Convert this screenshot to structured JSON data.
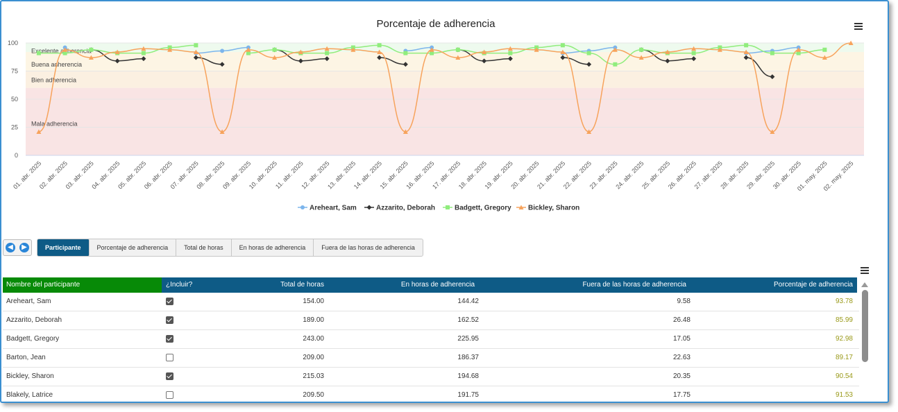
{
  "chart": {
    "title": "Porcentaje de adherencia"
  },
  "chart_data": {
    "type": "line",
    "title": "Porcentaje de adherencia",
    "ylim": [
      0,
      100
    ],
    "yticks": [
      "0",
      "25",
      "50",
      "75",
      "100"
    ],
    "categories": [
      "01. abr. 2025",
      "02. abr. 2025",
      "03. abr. 2025",
      "04. abr. 2025",
      "05. abr. 2025",
      "06. abr. 2025",
      "07. abr. 2025",
      "08. abr. 2025",
      "09. abr. 2025",
      "10. abr. 2025",
      "11. abr. 2025",
      "12. abr. 2025",
      "13. abr. 2025",
      "14. abr. 2025",
      "15. abr. 2025",
      "16. abr. 2025",
      "17. abr. 2025",
      "18. abr. 2025",
      "19. abr. 2025",
      "20. abr. 2025",
      "21. abr. 2025",
      "22. abr. 2025",
      "23. abr. 2025",
      "24. abr. 2025",
      "25. abr. 2025",
      "26. abr. 2025",
      "27. abr. 2025",
      "28. abr. 2025",
      "29. abr. 2025",
      "30. abr. 2025",
      "01. may. 2025",
      "02. may. 2025"
    ],
    "bands": [
      {
        "label": "Excelente adherencia",
        "from": 92,
        "to": 100,
        "color": "#eefaee"
      },
      {
        "label": "Buena adherencia",
        "from": 75,
        "to": 92,
        "color": "#fdf5e4"
      },
      {
        "label": "Bien adherencia",
        "from": 60,
        "to": 75,
        "color": "#fbf0e1"
      },
      {
        "label": "Mala adherencia",
        "from": 0,
        "to": 60,
        "color": "#f9e4e4"
      }
    ],
    "band_label_values": [
      93,
      81,
      67,
      28
    ],
    "series": [
      {
        "name": "Areheart, Sam",
        "color": "#7cb5ec",
        "marker": "circle",
        "values": [
          null,
          96,
          null,
          null,
          null,
          null,
          91,
          93,
          96,
          null,
          null,
          null,
          null,
          null,
          93,
          96,
          null,
          null,
          null,
          null,
          91,
          93,
          96,
          null,
          null,
          null,
          null,
          91,
          93,
          96,
          null,
          null
        ]
      },
      {
        "name": "Azzarito, Deborah",
        "color": "#333333",
        "marker": "diamond",
        "values": [
          null,
          null,
          94,
          84,
          86,
          null,
          87,
          81,
          null,
          94,
          84,
          86,
          null,
          87,
          81,
          null,
          94,
          84,
          86,
          null,
          87,
          81,
          null,
          94,
          84,
          86,
          null,
          87,
          70,
          null,
          null,
          null
        ]
      },
      {
        "name": "Badgett, Gregory",
        "color": "#90ed7d",
        "marker": "square",
        "values": [
          91,
          91,
          94,
          91,
          91,
          96,
          98,
          null,
          91,
          94,
          91,
          91,
          96,
          98,
          91,
          91,
          94,
          91,
          91,
          96,
          98,
          91,
          81,
          94,
          91,
          91,
          96,
          98,
          91,
          91,
          94,
          null
        ]
      },
      {
        "name": "Bickley, Sharon",
        "color": "#f7a35c",
        "marker": "triangle",
        "values": [
          21,
          94,
          87,
          92,
          95,
          94,
          92,
          21,
          94,
          87,
          92,
          95,
          94,
          92,
          21,
          94,
          87,
          92,
          95,
          94,
          92,
          21,
          94,
          87,
          92,
          95,
          94,
          92,
          21,
          94,
          87,
          100
        ]
      }
    ]
  },
  "toolbar": {
    "tabs": [
      "Participante",
      "Porcentaje de adherencia",
      "Total de horas",
      "En horas de adherencia",
      "Fuera de las horas de adherencia"
    ]
  },
  "table": {
    "headers": [
      "Nombre del participante",
      "¿Incluir?",
      "Total de horas",
      "En horas de adherencia",
      "Fuera de las horas de adherencia",
      "Porcentaje de adherencia"
    ],
    "rows": [
      {
        "name": "Areheart, Sam",
        "include": true,
        "total": "154.00",
        "in": "144.42",
        "out": "9.58",
        "pct": "93.78"
      },
      {
        "name": "Azzarito, Deborah",
        "include": true,
        "total": "189.00",
        "in": "162.52",
        "out": "26.48",
        "pct": "85.99"
      },
      {
        "name": "Badgett, Gregory",
        "include": true,
        "total": "243.00",
        "in": "225.95",
        "out": "17.05",
        "pct": "92.98"
      },
      {
        "name": "Barton, Jean",
        "include": false,
        "total": "209.00",
        "in": "186.37",
        "out": "22.63",
        "pct": "89.17"
      },
      {
        "name": "Bickley, Sharon",
        "include": true,
        "total": "215.03",
        "in": "194.68",
        "out": "20.35",
        "pct": "90.54"
      },
      {
        "name": "Blakely, Latrice",
        "include": false,
        "total": "209.50",
        "in": "191.75",
        "out": "17.75",
        "pct": "91.53"
      }
    ]
  }
}
